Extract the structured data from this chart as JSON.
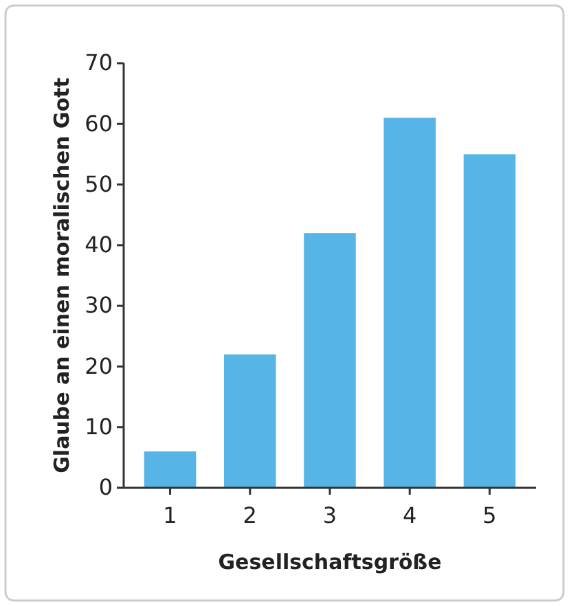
{
  "chart_data": {
    "type": "bar",
    "xlabel": "Gesellschaftsgröße",
    "ylabel": "Glaube an einen moralischen Gott",
    "categories": [
      "1",
      "2",
      "3",
      "4",
      "5"
    ],
    "values": [
      6,
      22,
      42,
      61,
      55
    ],
    "color": "#56b4e6",
    "ylim": [
      0,
      70
    ],
    "yticks": [
      0,
      10,
      20,
      30,
      40,
      50,
      60,
      70
    ],
    "grid": false
  }
}
